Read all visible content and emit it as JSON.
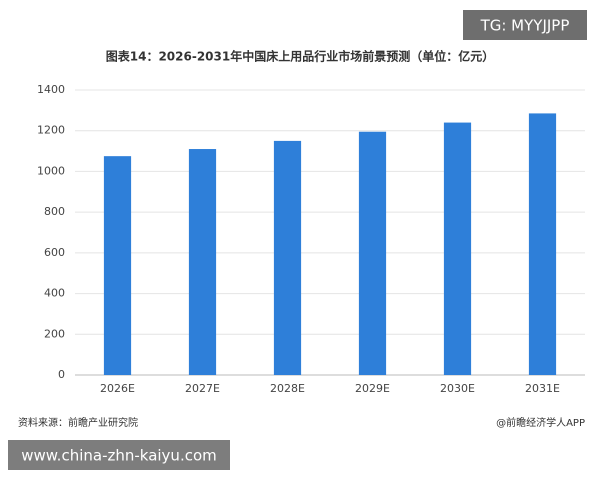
{
  "chart_data": {
    "type": "bar",
    "title": "图表14：2026-2031年中国床上用品行业市场前景预测（单位：亿元）",
    "categories": [
      "2026E",
      "2027E",
      "2028E",
      "2029E",
      "2030E",
      "2031E"
    ],
    "values": [
      1075,
      1110,
      1150,
      1195,
      1240,
      1285
    ],
    "color": "#2e7fd9",
    "ylim": [
      0,
      1400
    ],
    "yticks": [
      0,
      200,
      400,
      600,
      800,
      1000,
      1200,
      1400
    ],
    "grid": true,
    "source": "资料来源：前瞻产业研究院",
    "credit": "@前瞻经济学人APP"
  },
  "overlays": {
    "tag": "TG: MYYJJPP",
    "url": "www.china-zhn-kaiyu.com"
  }
}
